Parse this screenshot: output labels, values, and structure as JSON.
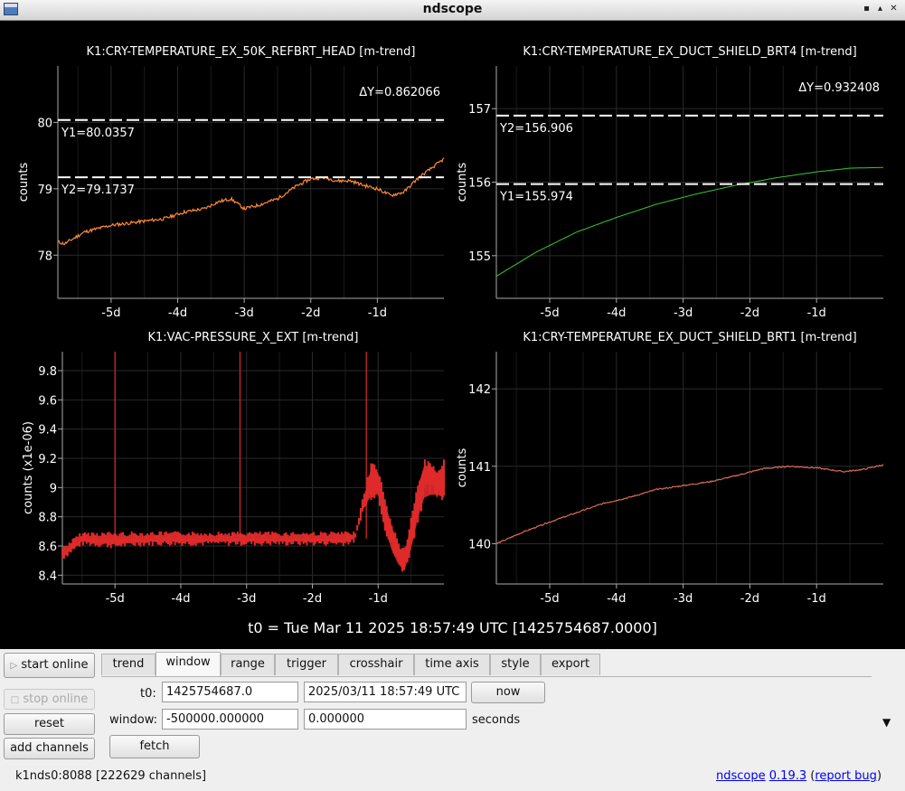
{
  "window": {
    "title": "ndscope"
  },
  "plots": [
    {
      "title": "K1:CRY-TEMPERATURE_EX_50K_REFBRT_HEAD [m-trend]",
      "ylabel": "counts",
      "color": "#ff8a33",
      "cursors": [
        {
          "label": "Y1=80.0357"
        },
        {
          "label": "Y2=79.1737"
        }
      ],
      "delta": "ΔY=0.862066"
    },
    {
      "title": "K1:CRY-TEMPERATURE_EX_DUCT_SHIELD_BRT4 [m-trend]",
      "ylabel": "counts",
      "color": "#33cc33",
      "cursors": [
        {
          "label": "Y2=156.906"
        },
        {
          "label": "Y1=155.974"
        }
      ],
      "delta": "ΔY=0.932408"
    },
    {
      "title": "K1:VAC-PRESSURE_X_EXT [m-trend]",
      "ylabel": "counts (x1e-06)",
      "color": "#e02a2a"
    },
    {
      "title": "K1:CRY-TEMPERATURE_EX_DUCT_SHIELD_BRT1 [m-trend]",
      "ylabel": "counts",
      "color": "#d86a5a"
    }
  ],
  "chart_data": [
    {
      "type": "line",
      "title": "K1:CRY-TEMPERATURE_EX_50K_REFBRT_HEAD [m-trend]",
      "ylabel": "counts",
      "xticks": [
        "-5d",
        "-4d",
        "-3d",
        "-2d",
        "-1d"
      ],
      "yticks": [
        78,
        79,
        80
      ],
      "xlim": [
        -5.8,
        0
      ],
      "ylim": [
        77.35,
        80.85
      ],
      "series": [
        {
          "x": [
            -5.8,
            -5.7,
            -5.4,
            -5.0,
            -4.6,
            -4.2,
            -3.9,
            -3.6,
            -3.4,
            -3.2,
            -3.0,
            -2.8,
            -2.5,
            -2.2,
            -2.0,
            -1.8,
            -1.6,
            -1.4,
            -1.2,
            -1.0,
            -0.8,
            -0.6,
            -0.4,
            -0.2,
            0.0
          ],
          "y": [
            78.2,
            78.17,
            78.35,
            78.45,
            78.5,
            78.55,
            78.65,
            78.7,
            78.8,
            78.85,
            78.7,
            78.75,
            78.85,
            79.05,
            79.15,
            79.17,
            79.12,
            79.12,
            79.05,
            79.0,
            78.9,
            78.95,
            79.15,
            79.3,
            79.45
          ]
        }
      ],
      "cursors": {
        "Y1": 80.0357,
        "Y2": 79.1737
      }
    },
    {
      "type": "line",
      "title": "K1:CRY-TEMPERATURE_EX_DUCT_SHIELD_BRT4 [m-trend]",
      "ylabel": "counts",
      "xticks": [
        "-5d",
        "-4d",
        "-3d",
        "-2d",
        "-1d"
      ],
      "yticks": [
        155,
        156,
        157
      ],
      "xlim": [
        -5.8,
        0
      ],
      "ylim": [
        154.42,
        157.58
      ],
      "series": [
        {
          "x": [
            -5.8,
            -5.2,
            -4.6,
            -4.0,
            -3.4,
            -2.8,
            -2.2,
            -1.6,
            -1.0,
            -0.5,
            0.0
          ],
          "y": [
            154.72,
            155.05,
            155.32,
            155.52,
            155.7,
            155.84,
            155.96,
            156.06,
            156.14,
            156.19,
            156.2
          ]
        }
      ],
      "cursors": {
        "Y2": 156.906,
        "Y1": 155.974
      }
    },
    {
      "type": "line",
      "title": "K1:VAC-PRESSURE_X_EXT [m-trend]",
      "ylabel": "counts (x1e-06)",
      "xticks": [
        "-5d",
        "-4d",
        "-3d",
        "-2d",
        "-1d"
      ],
      "yticks": [
        8.4,
        8.6,
        8.8,
        9,
        9.2,
        9.4,
        9.6,
        9.8
      ],
      "xlim": [
        -5.8,
        0
      ],
      "ylim": [
        8.34,
        9.93
      ],
      "series": [
        {
          "x": [
            -5.8,
            -5.5,
            -5.0,
            -4.5,
            -4.0,
            -3.5,
            -3.0,
            -2.5,
            -2.0,
            -1.5,
            -1.35,
            -1.25,
            -1.1,
            -1.0,
            -0.9,
            -0.8,
            -0.7,
            -0.6,
            -0.5,
            -0.4,
            -0.3,
            -0.2,
            -0.1,
            0.0
          ],
          "ymin": [
            8.5,
            8.6,
            8.58,
            8.6,
            8.6,
            8.6,
            8.6,
            8.6,
            8.6,
            8.6,
            8.62,
            8.8,
            8.92,
            8.92,
            8.7,
            8.55,
            8.45,
            8.4,
            8.55,
            8.75,
            8.9,
            8.92,
            8.92,
            8.9
          ],
          "ymax": [
            8.6,
            8.7,
            8.7,
            8.7,
            8.7,
            8.7,
            8.7,
            8.7,
            8.7,
            8.7,
            8.7,
            8.9,
            9.2,
            9.15,
            8.95,
            8.8,
            8.65,
            8.6,
            8.8,
            9.05,
            9.2,
            9.2,
            9.15,
            9.2
          ]
        }
      ],
      "spikes": [
        {
          "x": -5.0,
          "y": 9.93
        },
        {
          "x": -3.1,
          "y": 9.93
        },
        {
          "x": -1.18,
          "y": 9.93
        }
      ]
    },
    {
      "type": "line",
      "title": "K1:CRY-TEMPERATURE_EX_DUCT_SHIELD_BRT1 [m-trend]",
      "ylabel": "counts",
      "xticks": [
        "-5d",
        "-4d",
        "-3d",
        "-2d",
        "-1d"
      ],
      "yticks": [
        140,
        141,
        142
      ],
      "xlim": [
        -5.8,
        0
      ],
      "ylim": [
        139.48,
        142.48
      ],
      "series": [
        {
          "x": [
            -5.8,
            -5.4,
            -5.0,
            -4.6,
            -4.2,
            -3.8,
            -3.4,
            -3.0,
            -2.6,
            -2.2,
            -1.8,
            -1.4,
            -1.0,
            -0.6,
            -0.3,
            0.0
          ],
          "y": [
            140.0,
            140.15,
            140.28,
            140.4,
            140.52,
            140.6,
            140.7,
            140.75,
            140.8,
            140.88,
            140.97,
            141.0,
            140.98,
            140.93,
            140.96,
            141.02
          ]
        }
      ]
    }
  ],
  "t0_label": "t0 = Tue Mar 11 2025 18:57:49 UTC [1425754687.0000]",
  "controls": {
    "start_online": "start online",
    "stop_online": "stop online",
    "reset": "reset",
    "add_channels": "add channels",
    "tabs": [
      "trend",
      "window",
      "range",
      "trigger",
      "crosshair",
      "time axis",
      "style",
      "export"
    ],
    "active_tab": "window",
    "t0_label": "t0:",
    "t0_gps": "1425754687.0",
    "t0_utc": "2025/03/11 18:57:49 UTC",
    "now": "now",
    "window_label": "window:",
    "window_start": "-500000.000000",
    "window_end": "0.000000",
    "seconds": "seconds",
    "fetch": "fetch"
  },
  "status": {
    "server": "k1nds0:8088",
    "channels": "[222629 channels]",
    "app": "ndscope",
    "version": "0.19.3",
    "open_paren": " (",
    "report_bug": "report bug",
    "close_paren": ")"
  }
}
